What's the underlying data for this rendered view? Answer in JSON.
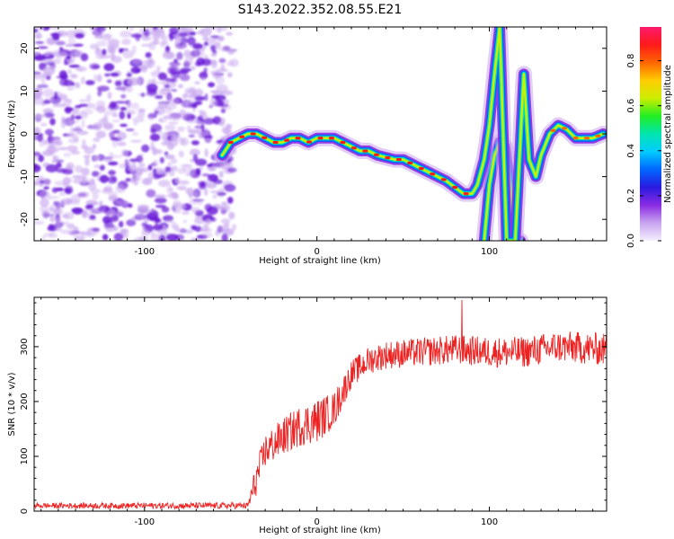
{
  "title": "S143.2022.352.08.55.E21",
  "colors": {
    "snr_line": "#ee2222",
    "noise_dark": "#6a1ad8",
    "noise_light": "#c9a8ef",
    "colormap": [
      "#f5f0ff",
      "#c8a4ef",
      "#8a2be2",
      "#2a1ae0",
      "#0066ff",
      "#00ccff",
      "#00e5b0",
      "#22ee22",
      "#ccee00",
      "#ffcc00",
      "#ff6600",
      "#ff1a1a",
      "#ff1a6e"
    ]
  },
  "chart_data": [
    {
      "type": "heatmap",
      "name": "spectrogram",
      "xlabel": "Height of straight line (km)",
      "ylabel": "Frequency (Hz)",
      "xlim": [
        -164,
        168
      ],
      "ylim": [
        -25,
        25
      ],
      "xticks": [
        -100,
        0,
        100
      ],
      "yticks": [
        -20,
        -10,
        0,
        10,
        20
      ],
      "colorbar": {
        "label": "Normalized spectral amplitude",
        "range": [
          0.0,
          0.95
        ],
        "ticks": [
          0.0,
          0.2,
          0.4,
          0.6,
          0.8
        ]
      },
      "noise_region_x": [
        -164,
        -48
      ],
      "ridge": {
        "x": [
          -55,
          -50,
          -45,
          -40,
          -35,
          -30,
          -25,
          -20,
          -15,
          -10,
          -5,
          0,
          5,
          10,
          15,
          20,
          25,
          30,
          35,
          40,
          45,
          50,
          55,
          60,
          65,
          70,
          75,
          80,
          85,
          90,
          93,
          97,
          100,
          103,
          106,
          110,
          115,
          120,
          123,
          127,
          130,
          135,
          140,
          145,
          150,
          155,
          160,
          166
        ],
        "y": [
          -5,
          -2,
          -1,
          0,
          0,
          -1,
          -2,
          -2,
          -1,
          -1,
          -2,
          -1,
          -1,
          -1,
          -2,
          -3,
          -4,
          -4,
          -5,
          -5.5,
          -6,
          -6,
          -7,
          -8,
          -9,
          -10,
          -11,
          -12.5,
          -14,
          -14,
          -12,
          -6,
          2,
          14,
          25,
          -25,
          -25,
          14,
          -6,
          -10,
          -5,
          0,
          2,
          1,
          -1,
          -1,
          -1,
          0
        ]
      },
      "secondary_ridge": {
        "x": [
          97,
          100,
          103,
          106,
          109,
          112,
          115,
          118
        ],
        "y": [
          -25,
          -12,
          -5,
          -2,
          -3,
          -12,
          -25,
          -25
        ]
      }
    },
    {
      "type": "line",
      "name": "snr",
      "xlabel": "Height of straight line (km)",
      "ylabel": "SNR (10 * v/v)",
      "xlim": [
        -164,
        168
      ],
      "ylim": [
        0,
        390
      ],
      "xticks": [
        -100,
        0,
        100
      ],
      "yticks": [
        0,
        100,
        200,
        300
      ],
      "trend": {
        "x": [
          -164,
          -40,
          -36,
          -30,
          -20,
          -10,
          0,
          10,
          20,
          30,
          40,
          60,
          80,
          100,
          120,
          140,
          168
        ],
        "y": [
          10,
          10,
          50,
          110,
          135,
          155,
          165,
          185,
          250,
          275,
          285,
          290,
          295,
          290,
          290,
          300,
          295
        ]
      },
      "noise_amplitude": {
        "x": [
          -164,
          -40,
          -36,
          0,
          20,
          168
        ],
        "y": [
          5,
          6,
          30,
          40,
          25,
          30
        ]
      },
      "spike": {
        "x": 84,
        "y": 385
      }
    }
  ]
}
